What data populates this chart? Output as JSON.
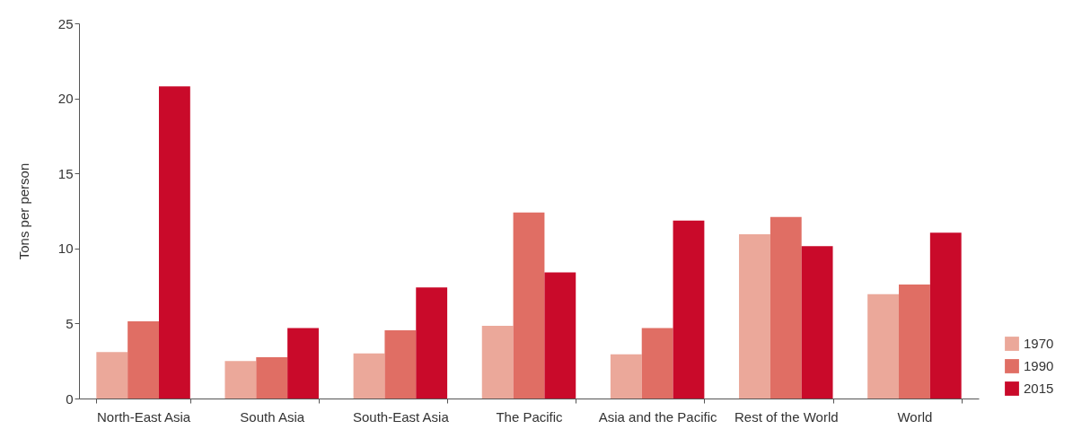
{
  "chart_data": {
    "type": "bar",
    "ylabel": "Tons per person",
    "categories": [
      "North-East Asia",
      "South Asia",
      "South-East Asia",
      "The Pacific",
      "Asia and the Pacific",
      "Rest of the World",
      "World"
    ],
    "series": [
      {
        "name": "1970",
        "color": "#eba89a",
        "values": [
          3.1,
          2.5,
          3.0,
          4.85,
          2.95,
          10.95,
          6.95
        ]
      },
      {
        "name": "1990",
        "color": "#e06e64",
        "values": [
          5.15,
          2.75,
          4.55,
          12.4,
          4.7,
          12.1,
          7.6
        ]
      },
      {
        "name": "2015",
        "color": "#c90a2a",
        "values": [
          20.8,
          4.7,
          7.4,
          8.4,
          11.85,
          10.15,
          11.05
        ]
      }
    ],
    "ylim": [
      0,
      25
    ],
    "yticks": [
      0,
      5,
      10,
      15,
      20,
      25
    ],
    "grid": false,
    "legend": "bottom right"
  }
}
